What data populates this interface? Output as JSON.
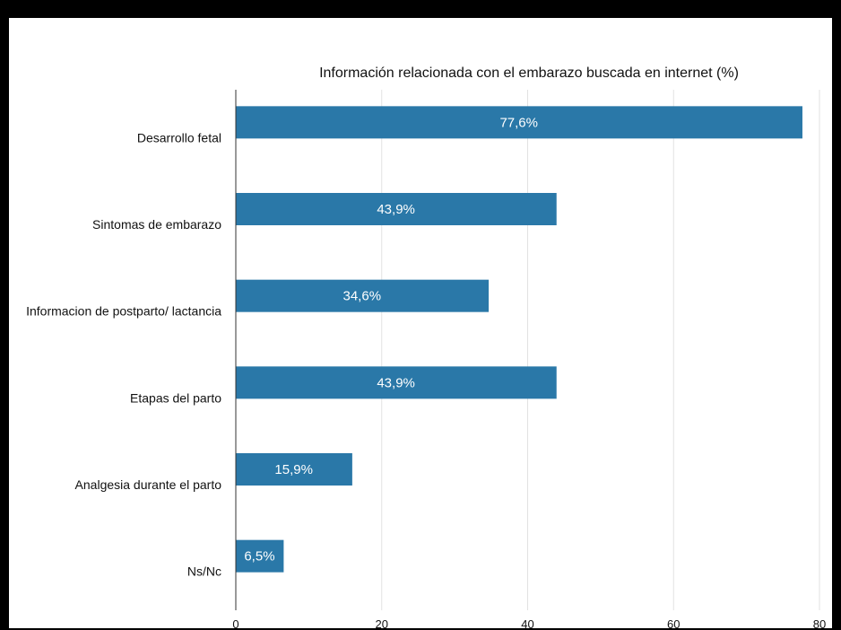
{
  "chart_data": {
    "type": "bar",
    "orientation": "horizontal",
    "title": "Información relacionada con el embarazo buscada en internet (%)",
    "categories": [
      "Desarrollo fetal",
      "Sintomas de embarazo",
      "Informacion de postparto/ lactancia",
      "Etapas del parto",
      "Analgesia durante el parto",
      "Ns/Nc"
    ],
    "values": [
      77.6,
      43.9,
      34.6,
      43.9,
      15.9,
      6.5
    ],
    "data_labels": [
      "77,6%",
      "43,9%",
      "34,6%",
      "43,9%",
      "15,9%",
      "6,5%"
    ],
    "xticks": [
      0,
      20,
      40,
      60,
      80
    ],
    "xtick_labels": [
      "0",
      "20",
      "40",
      "60",
      "80"
    ],
    "xlim": [
      0,
      80
    ],
    "grid": "vertical",
    "bar_color": "#2a78a8"
  }
}
